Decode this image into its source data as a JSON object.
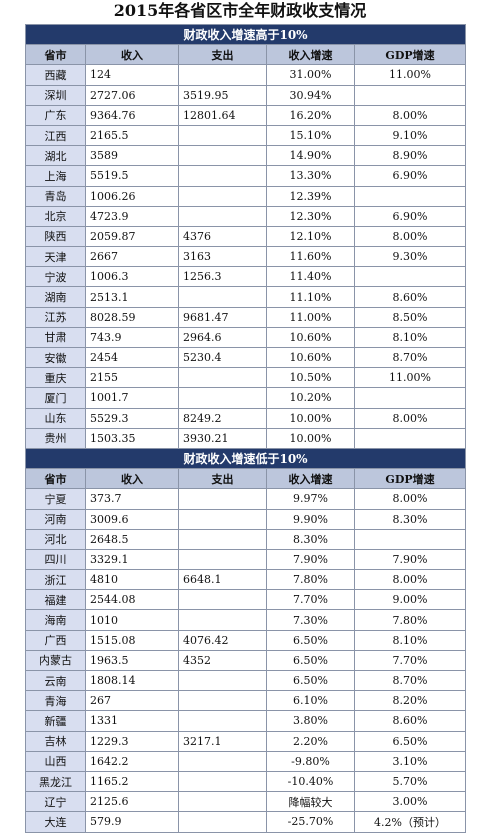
{
  "title": "2015年各省区市全年财政收支情况",
  "sections": [
    {
      "heading": "财政收入增速高于10%",
      "columns": [
        "省市",
        "收入",
        "支出",
        "收入增速",
        "GDP增速"
      ],
      "rows": [
        [
          "西藏",
          "124",
          null,
          "31.00%",
          "11.00%"
        ],
        [
          "深圳",
          "2727.06",
          "3519.95",
          "30.94%",
          null
        ],
        [
          "广东",
          "9364.76",
          "12801.64",
          "16.20%",
          "8.00%"
        ],
        [
          "江西",
          "2165.5",
          null,
          "15.10%",
          "9.10%"
        ],
        [
          "湖北",
          "3589",
          null,
          "14.90%",
          "8.90%"
        ],
        [
          "上海",
          "5519.5",
          null,
          "13.30%",
          "6.90%"
        ],
        [
          "青岛",
          "1006.26",
          null,
          "12.39%",
          null
        ],
        [
          "北京",
          "4723.9",
          null,
          "12.30%",
          "6.90%"
        ],
        [
          "陕西",
          "2059.87",
          "4376",
          "12.10%",
          "8.00%"
        ],
        [
          "天津",
          "2667",
          "3163",
          "11.60%",
          "9.30%"
        ],
        [
          "宁波",
          "1006.3",
          "1256.3",
          "11.40%",
          null
        ],
        [
          "湖南",
          "2513.1",
          null,
          "11.10%",
          "8.60%"
        ],
        [
          "江苏",
          "8028.59",
          "9681.47",
          "11.00%",
          "8.50%"
        ],
        [
          "甘肃",
          "743.9",
          "2964.6",
          "10.60%",
          "8.10%"
        ],
        [
          "安徽",
          "2454",
          "5230.4",
          "10.60%",
          "8.70%"
        ],
        [
          "重庆",
          "2155",
          null,
          "10.50%",
          "11.00%"
        ],
        [
          "厦门",
          "1001.7",
          null,
          "10.20%",
          null
        ],
        [
          "山东",
          "5529.3",
          "8249.2",
          "10.00%",
          "8.00%"
        ],
        [
          "贵州",
          "1503.35",
          "3930.21",
          "10.00%",
          null
        ]
      ]
    },
    {
      "heading": "财政收入增速低于10%",
      "columns": [
        "省市",
        "收入",
        "支出",
        "收入增速",
        "GDP增速"
      ],
      "rows": [
        [
          "宁夏",
          "373.7",
          null,
          "9.97%",
          "8.00%"
        ],
        [
          "河南",
          "3009.6",
          null,
          "9.90%",
          "8.30%"
        ],
        [
          "河北",
          "2648.5",
          null,
          "8.30%",
          null
        ],
        [
          "四川",
          "3329.1",
          null,
          "7.90%",
          "7.90%"
        ],
        [
          "浙江",
          "4810",
          "6648.1",
          "7.80%",
          "8.00%"
        ],
        [
          "福建",
          "2544.08",
          null,
          "7.70%",
          "9.00%"
        ],
        [
          "海南",
          "1010",
          null,
          "7.30%",
          "7.80%"
        ],
        [
          "广西",
          "1515.08",
          "4076.42",
          "6.50%",
          "8.10%"
        ],
        [
          "内蒙古",
          "1963.5",
          "4352",
          "6.50%",
          "7.70%"
        ],
        [
          "云南",
          "1808.14",
          null,
          "6.50%",
          "8.70%"
        ],
        [
          "青海",
          "267",
          null,
          "6.10%",
          "8.20%"
        ],
        [
          "新疆",
          "1331",
          null,
          "3.80%",
          "8.60%"
        ],
        [
          "吉林",
          "1229.3",
          "3217.1",
          "2.20%",
          "6.50%"
        ],
        [
          "山西",
          "1642.2",
          null,
          "-9.80%",
          "3.10%"
        ],
        [
          "黑龙江",
          "1165.2",
          null,
          "-10.40%",
          "5.70%"
        ],
        [
          "辽宁",
          "2125.6",
          null,
          "降幅较大",
          "3.00%"
        ],
        [
          "大连",
          "579.9",
          null,
          "-25.70%",
          "4.2%（预计）"
        ]
      ]
    }
  ]
}
